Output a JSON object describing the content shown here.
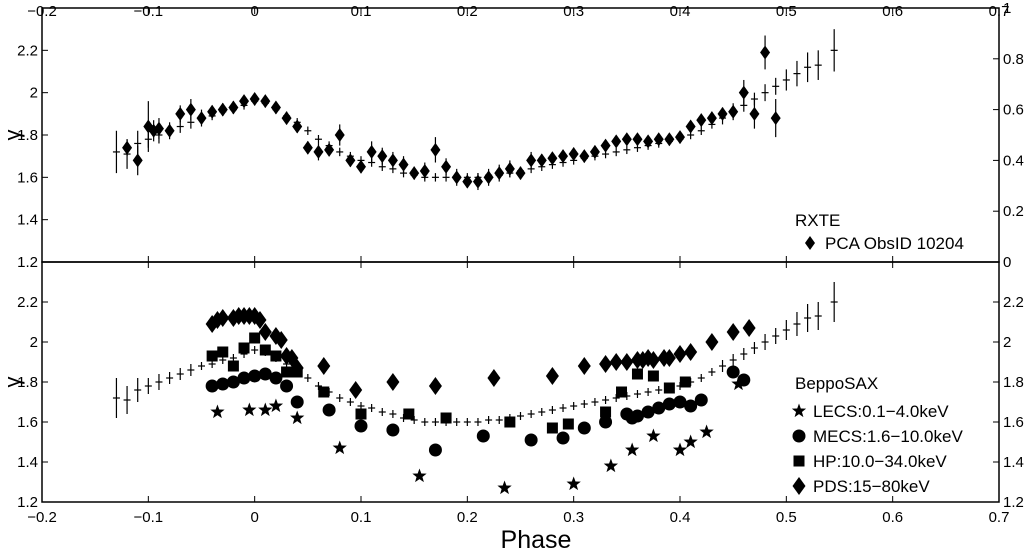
{
  "chart_data": [
    {
      "type": "scatter",
      "panel": "top",
      "xlabel": "",
      "ylabel": "γ",
      "xlim": [
        -0.2,
        0.7
      ],
      "ylim": [
        1.2,
        2.4
      ],
      "y2lim": [
        0,
        1
      ],
      "x_ticks": [
        -0.2,
        -0.1,
        0,
        0.1,
        0.2,
        0.3,
        0.4,
        0.5,
        0.6,
        0.7
      ],
      "x_tick_labels": [
        "−0.2",
        "−0.1",
        "0",
        "0.1",
        "0.2",
        "0.3",
        "0.4",
        "0.5",
        "0.6",
        "0.7"
      ],
      "y_ticks": [
        1.2,
        1.4,
        1.6,
        1.8,
        2,
        2.2
      ],
      "y_tick_labels": [
        "1.2",
        "1.4",
        "1.6",
        "1.8",
        "2",
        "2.2"
      ],
      "y2_ticks": [
        0,
        0.2,
        0.4,
        0.6,
        0.8,
        1
      ],
      "y2_tick_labels": [
        "0",
        "0.2",
        "0.4",
        "0.6",
        "0.8",
        "1"
      ],
      "legend_title": "RXTE",
      "legend_position": "bottom-right",
      "series": [
        {
          "name": "PCA ObsID 10204",
          "marker": "diamond",
          "x": [
            -0.12,
            -0.11,
            -0.1,
            -0.095,
            -0.09,
            -0.08,
            -0.07,
            -0.06,
            -0.05,
            -0.04,
            -0.03,
            -0.02,
            -0.01,
            0,
            0.01,
            0.02,
            0.03,
            0.04,
            0.05,
            0.06,
            0.07,
            0.08,
            0.09,
            0.1,
            0.11,
            0.12,
            0.13,
            0.14,
            0.15,
            0.16,
            0.17,
            0.18,
            0.19,
            0.2,
            0.21,
            0.22,
            0.23,
            0.24,
            0.25,
            0.26,
            0.27,
            0.28,
            0.29,
            0.3,
            0.31,
            0.32,
            0.33,
            0.34,
            0.35,
            0.36,
            0.37,
            0.38,
            0.39,
            0.4,
            0.41,
            0.42,
            0.43,
            0.44,
            0.45,
            0.46,
            0.47,
            0.48,
            0.49
          ],
          "y": [
            1.74,
            1.68,
            1.84,
            1.82,
            1.83,
            1.82,
            1.9,
            1.92,
            1.88,
            1.91,
            1.92,
            1.93,
            1.96,
            1.97,
            1.96,
            1.93,
            1.88,
            1.84,
            1.74,
            1.72,
            1.73,
            1.8,
            1.68,
            1.65,
            1.72,
            1.7,
            1.68,
            1.66,
            1.62,
            1.63,
            1.73,
            1.65,
            1.6,
            1.58,
            1.58,
            1.6,
            1.62,
            1.64,
            1.62,
            1.68,
            1.68,
            1.69,
            1.7,
            1.71,
            1.7,
            1.72,
            1.75,
            1.77,
            1.78,
            1.78,
            1.77,
            1.78,
            1.78,
            1.79,
            1.84,
            1.87,
            1.88,
            1.9,
            1.91,
            2.0,
            1.9,
            2.19,
            1.88
          ],
          "err": [
            0.04,
            0.07,
            0.12,
            0.05,
            0.05,
            0.04,
            0.04,
            0.05,
            0.04,
            0.03,
            0.03,
            0.03,
            0.02,
            0.02,
            0.02,
            0.02,
            0.03,
            0.03,
            0.03,
            0.04,
            0.03,
            0.05,
            0.03,
            0.03,
            0.05,
            0.04,
            0.04,
            0.04,
            0.03,
            0.04,
            0.06,
            0.04,
            0.04,
            0.03,
            0.04,
            0.04,
            0.04,
            0.04,
            0.03,
            0.04,
            0.03,
            0.03,
            0.03,
            0.03,
            0.02,
            0.03,
            0.02,
            0.02,
            0.02,
            0.02,
            0.02,
            0.02,
            0.02,
            0.02,
            0.02,
            0.03,
            0.03,
            0.03,
            0.04,
            0.06,
            0.07,
            0.08,
            0.09
          ]
        },
        {
          "name": "",
          "marker": "crosshair",
          "x": [
            -0.13,
            -0.12,
            -0.11,
            -0.1,
            -0.09,
            -0.08,
            -0.07,
            -0.06,
            -0.05,
            -0.04,
            -0.03,
            -0.02,
            -0.01,
            0,
            0.01,
            0.02,
            0.03,
            0.04,
            0.05,
            0.06,
            0.07,
            0.08,
            0.09,
            0.1,
            0.11,
            0.12,
            0.13,
            0.14,
            0.15,
            0.16,
            0.17,
            0.18,
            0.19,
            0.2,
            0.21,
            0.22,
            0.23,
            0.24,
            0.25,
            0.26,
            0.27,
            0.28,
            0.29,
            0.3,
            0.31,
            0.32,
            0.33,
            0.34,
            0.35,
            0.36,
            0.37,
            0.38,
            0.39,
            0.4,
            0.41,
            0.42,
            0.43,
            0.44,
            0.45,
            0.46,
            0.47,
            0.48,
            0.49,
            0.5,
            0.51,
            0.52,
            0.53,
            0.545
          ],
          "y": [
            1.72,
            1.71,
            1.76,
            1.78,
            1.8,
            1.82,
            1.84,
            1.86,
            1.88,
            1.89,
            1.91,
            1.92,
            1.94,
            1.96,
            1.95,
            1.92,
            1.89,
            1.86,
            1.82,
            1.78,
            1.75,
            1.72,
            1.7,
            1.68,
            1.67,
            1.65,
            1.64,
            1.62,
            1.61,
            1.6,
            1.6,
            1.6,
            1.6,
            1.6,
            1.6,
            1.61,
            1.61,
            1.62,
            1.63,
            1.64,
            1.65,
            1.66,
            1.67,
            1.68,
            1.69,
            1.7,
            1.71,
            1.72,
            1.73,
            1.74,
            1.75,
            1.76,
            1.77,
            1.78,
            1.8,
            1.82,
            1.85,
            1.88,
            1.91,
            1.94,
            1.97,
            2.0,
            2.03,
            2.06,
            2.09,
            2.12,
            2.13,
            2.2
          ],
          "err": [
            0.1,
            0.07,
            0.06,
            0.04,
            0.04,
            0.03,
            0.03,
            0.03,
            0.02,
            0.02,
            0.02,
            0.02,
            0.02,
            0.02,
            0.02,
            0.02,
            0.02,
            0.02,
            0.02,
            0.02,
            0.02,
            0.02,
            0.02,
            0.02,
            0.02,
            0.02,
            0.02,
            0.02,
            0.02,
            0.02,
            0.02,
            0.02,
            0.02,
            0.02,
            0.02,
            0.02,
            0.02,
            0.02,
            0.02,
            0.02,
            0.02,
            0.02,
            0.02,
            0.02,
            0.02,
            0.02,
            0.02,
            0.02,
            0.02,
            0.02,
            0.02,
            0.02,
            0.02,
            0.02,
            0.02,
            0.02,
            0.02,
            0.03,
            0.03,
            0.03,
            0.03,
            0.04,
            0.04,
            0.05,
            0.06,
            0.07,
            0.07,
            0.1
          ]
        }
      ]
    },
    {
      "type": "scatter",
      "panel": "bottom",
      "xlabel": "Phase",
      "ylabel": "γ",
      "xlim": [
        -0.2,
        0.7
      ],
      "ylim": [
        1.2,
        2.4
      ],
      "y2lim": [
        1.2,
        2.4
      ],
      "x_ticks": [
        -0.2,
        -0.1,
        0,
        0.1,
        0.2,
        0.3,
        0.4,
        0.5,
        0.6,
        0.7
      ],
      "x_tick_labels": [
        "−0.2",
        "−0.1",
        "0",
        "0.1",
        "0.2",
        "0.3",
        "0.4",
        "0.5",
        "0.6",
        "0.7"
      ],
      "y_ticks": [
        1.2,
        1.4,
        1.6,
        1.8,
        2,
        2.2
      ],
      "y_tick_labels": [
        "1.2",
        "1.4",
        "1.6",
        "1.8",
        "2",
        "2.2"
      ],
      "y2_ticks": [
        1.2,
        1.4,
        1.6,
        1.8,
        2,
        2.2
      ],
      "y2_tick_labels": [
        "1.2",
        "1.4",
        "1.6",
        "1.8",
        "2",
        "2.2"
      ],
      "legend_title": "BeppoSAX",
      "legend_position": "bottom-right",
      "series": [
        {
          "name": "LECS:0.1−4.0keV",
          "marker": "star",
          "x": [
            -0.035,
            -0.005,
            0.01,
            0.02,
            0.04,
            0.08,
            0.155,
            0.235,
            0.3,
            0.335,
            0.355,
            0.375,
            0.4,
            0.41,
            0.425,
            0.455
          ],
          "y": [
            1.65,
            1.66,
            1.66,
            1.68,
            1.62,
            1.47,
            1.33,
            1.27,
            1.29,
            1.38,
            1.46,
            1.53,
            1.46,
            1.5,
            1.55,
            1.79
          ]
        },
        {
          "name": "MECS:1.6−10.0keV",
          "marker": "circle",
          "x": [
            -0.04,
            -0.03,
            -0.02,
            -0.01,
            0,
            0.01,
            0.02,
            0.03,
            0.04,
            0.07,
            0.1,
            0.13,
            0.17,
            0.215,
            0.26,
            0.29,
            0.31,
            0.33,
            0.35,
            0.355,
            0.36,
            0.37,
            0.38,
            0.39,
            0.4,
            0.41,
            0.42,
            0.45,
            0.46
          ],
          "y": [
            1.78,
            1.79,
            1.8,
            1.82,
            1.83,
            1.84,
            1.82,
            1.78,
            1.7,
            1.66,
            1.58,
            1.56,
            1.46,
            1.53,
            1.51,
            1.52,
            1.57,
            1.6,
            1.64,
            1.62,
            1.63,
            1.65,
            1.67,
            1.69,
            1.7,
            1.68,
            1.71,
            1.85,
            1.81
          ]
        },
        {
          "name": "HP:10.0−34.0keV",
          "marker": "square",
          "x": [
            -0.04,
            -0.03,
            -0.02,
            -0.01,
            0,
            0.01,
            0.02,
            0.03,
            0.04,
            0.065,
            0.1,
            0.145,
            0.18,
            0.24,
            0.28,
            0.295,
            0.33,
            0.345,
            0.36,
            0.375,
            0.39,
            0.405
          ],
          "y": [
            1.93,
            1.95,
            1.88,
            1.97,
            2.02,
            1.96,
            1.93,
            1.85,
            1.85,
            1.75,
            1.64,
            1.64,
            1.62,
            1.6,
            1.57,
            1.59,
            1.65,
            1.75,
            1.84,
            1.83,
            1.77,
            1.8
          ]
        },
        {
          "name": "PDS:15−80keV",
          "marker": "diamond",
          "x": [
            -0.04,
            -0.035,
            -0.03,
            -0.02,
            -0.015,
            -0.01,
            -0.005,
            0,
            0.005,
            0.01,
            0.02,
            0.025,
            0.03,
            0.035,
            0.04,
            0.065,
            0.095,
            0.13,
            0.17,
            0.225,
            0.28,
            0.31,
            0.33,
            0.34,
            0.35,
            0.36,
            0.365,
            0.37,
            0.375,
            0.385,
            0.39,
            0.4,
            0.41,
            0.43,
            0.45,
            0.465
          ],
          "y": [
            2.09,
            2.11,
            2.12,
            2.12,
            2.13,
            2.13,
            2.13,
            2.13,
            2.11,
            2.05,
            2.03,
            2.01,
            1.93,
            1.92,
            1.87,
            1.88,
            1.76,
            1.8,
            1.78,
            1.82,
            1.83,
            1.88,
            1.89,
            1.9,
            1.9,
            1.91,
            1.91,
            1.92,
            1.91,
            1.92,
            1.92,
            1.94,
            1.95,
            2.0,
            2.05,
            2.07
          ]
        },
        {
          "name": "",
          "marker": "crosshair",
          "x": [
            -0.13,
            -0.12,
            -0.11,
            -0.1,
            -0.09,
            -0.08,
            -0.07,
            -0.06,
            -0.05,
            -0.04,
            -0.03,
            -0.02,
            -0.01,
            0,
            0.01,
            0.02,
            0.03,
            0.04,
            0.05,
            0.06,
            0.07,
            0.08,
            0.09,
            0.1,
            0.11,
            0.12,
            0.13,
            0.14,
            0.15,
            0.16,
            0.17,
            0.18,
            0.19,
            0.2,
            0.21,
            0.22,
            0.23,
            0.24,
            0.25,
            0.26,
            0.27,
            0.28,
            0.29,
            0.3,
            0.31,
            0.32,
            0.33,
            0.34,
            0.35,
            0.36,
            0.37,
            0.38,
            0.39,
            0.4,
            0.41,
            0.42,
            0.43,
            0.44,
            0.45,
            0.46,
            0.47,
            0.48,
            0.49,
            0.5,
            0.51,
            0.52,
            0.53,
            0.545
          ],
          "y": [
            1.72,
            1.71,
            1.76,
            1.78,
            1.8,
            1.82,
            1.84,
            1.86,
            1.88,
            1.89,
            1.91,
            1.92,
            1.94,
            1.96,
            1.95,
            1.92,
            1.89,
            1.86,
            1.82,
            1.78,
            1.75,
            1.72,
            1.7,
            1.68,
            1.67,
            1.65,
            1.64,
            1.62,
            1.61,
            1.6,
            1.6,
            1.6,
            1.6,
            1.6,
            1.6,
            1.61,
            1.61,
            1.62,
            1.63,
            1.64,
            1.65,
            1.66,
            1.67,
            1.68,
            1.69,
            1.7,
            1.71,
            1.72,
            1.73,
            1.74,
            1.75,
            1.76,
            1.77,
            1.78,
            1.8,
            1.82,
            1.85,
            1.88,
            1.91,
            1.94,
            1.97,
            2.0,
            2.03,
            2.06,
            2.09,
            2.12,
            2.13,
            2.2
          ],
          "err": [
            0.1,
            0.07,
            0.06,
            0.04,
            0.04,
            0.03,
            0.03,
            0.03,
            0.02,
            0.02,
            0.02,
            0.02,
            0.02,
            0.02,
            0.02,
            0.02,
            0.02,
            0.02,
            0.02,
            0.02,
            0.02,
            0.02,
            0.02,
            0.02,
            0.02,
            0.02,
            0.02,
            0.02,
            0.02,
            0.02,
            0.02,
            0.02,
            0.02,
            0.02,
            0.02,
            0.02,
            0.02,
            0.02,
            0.02,
            0.02,
            0.02,
            0.02,
            0.02,
            0.02,
            0.02,
            0.02,
            0.02,
            0.02,
            0.02,
            0.02,
            0.02,
            0.02,
            0.02,
            0.02,
            0.02,
            0.02,
            0.02,
            0.03,
            0.03,
            0.03,
            0.03,
            0.04,
            0.04,
            0.05,
            0.06,
            0.07,
            0.07,
            0.1
          ]
        }
      ]
    }
  ]
}
